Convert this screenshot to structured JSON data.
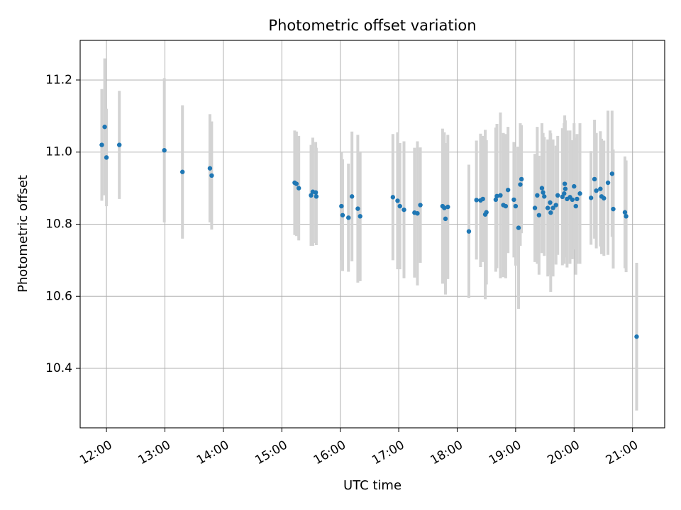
{
  "chart_data": {
    "type": "scatter",
    "title": "Photometric offset variation",
    "xlabel": "UTC time",
    "ylabel": "Photometric offset",
    "xlim": [
      11.55,
      21.55
    ],
    "ylim": [
      10.235,
      11.31
    ],
    "grid": true,
    "x_ticks": [
      12,
      13,
      14,
      15,
      16,
      17,
      18,
      19,
      20,
      21
    ],
    "x_tick_labels": [
      "12:00",
      "13:00",
      "14:00",
      "15:00",
      "16:00",
      "17:00",
      "18:00",
      "19:00",
      "20:00",
      "21:00"
    ],
    "y_ticks": [
      10.4,
      10.6,
      10.8,
      11.0,
      11.2
    ],
    "y_tick_labels": [
      "10.4",
      "10.6",
      "10.8",
      "11.0",
      "11.2"
    ],
    "colors": {
      "point": "#1f77b4",
      "errorbar": "#d3d3d3",
      "grid": "#b0b0b0",
      "axis": "#000000"
    },
    "series": [
      {
        "name": "offset",
        "points": [
          [
            11.92,
            11.02,
            0.155
          ],
          [
            11.97,
            11.07,
            0.19
          ],
          [
            12.0,
            10.985,
            0.135
          ],
          [
            12.22,
            11.02,
            0.15
          ],
          [
            12.99,
            11.005,
            0.2
          ],
          [
            13.3,
            10.945,
            0.185
          ],
          [
            13.77,
            10.955,
            0.15
          ],
          [
            13.8,
            10.935,
            0.15
          ],
          [
            15.22,
            10.915,
            0.145
          ],
          [
            15.25,
            10.912,
            0.145
          ],
          [
            15.29,
            10.9,
            0.145
          ],
          [
            15.5,
            10.88,
            0.14
          ],
          [
            15.53,
            10.89,
            0.15
          ],
          [
            15.58,
            10.888,
            0.14
          ],
          [
            15.59,
            10.877,
            0.135
          ],
          [
            16.02,
            10.85,
            0.15
          ],
          [
            16.04,
            10.825,
            0.155
          ],
          [
            16.14,
            10.818,
            0.15
          ],
          [
            16.2,
            10.877,
            0.18
          ],
          [
            16.3,
            10.843,
            0.205
          ],
          [
            16.34,
            10.822,
            0.18
          ],
          [
            16.9,
            10.875,
            0.175
          ],
          [
            16.98,
            10.865,
            0.19
          ],
          [
            17.02,
            10.85,
            0.175
          ],
          [
            17.09,
            10.84,
            0.19
          ],
          [
            17.27,
            10.832,
            0.18
          ],
          [
            17.32,
            10.83,
            0.2
          ],
          [
            17.37,
            10.853,
            0.16
          ],
          [
            17.75,
            10.85,
            0.215
          ],
          [
            17.78,
            10.845,
            0.21
          ],
          [
            17.8,
            10.815,
            0.21
          ],
          [
            17.84,
            10.848,
            0.2
          ],
          [
            18.2,
            10.78,
            0.185
          ],
          [
            18.33,
            10.867,
            0.165
          ],
          [
            18.4,
            10.866,
            0.185
          ],
          [
            18.44,
            10.87,
            0.175
          ],
          [
            18.48,
            10.827,
            0.235
          ],
          [
            18.5,
            10.833,
            0.2
          ],
          [
            18.66,
            10.868,
            0.2
          ],
          [
            18.68,
            10.878,
            0.2
          ],
          [
            18.74,
            10.88,
            0.23
          ],
          [
            18.79,
            10.853,
            0.2
          ],
          [
            18.83,
            10.85,
            0.2
          ],
          [
            18.87,
            10.895,
            0.175
          ],
          [
            18.97,
            10.868,
            0.16
          ],
          [
            19.0,
            10.85,
            0.165
          ],
          [
            19.05,
            10.79,
            0.225
          ],
          [
            19.08,
            10.91,
            0.17
          ],
          [
            19.1,
            10.925,
            0.15
          ],
          [
            19.33,
            10.845,
            0.15
          ],
          [
            19.37,
            10.88,
            0.19
          ],
          [
            19.4,
            10.825,
            0.165
          ],
          [
            19.45,
            10.9,
            0.18
          ],
          [
            19.47,
            10.888,
            0.165
          ],
          [
            19.49,
            10.877,
            0.165
          ],
          [
            19.55,
            10.845,
            0.19
          ],
          [
            19.59,
            10.86,
            0.2
          ],
          [
            19.6,
            10.832,
            0.22
          ],
          [
            19.64,
            10.845,
            0.19
          ],
          [
            19.69,
            10.853,
            0.165
          ],
          [
            19.72,
            10.88,
            0.165
          ],
          [
            19.8,
            10.876,
            0.19
          ],
          [
            19.83,
            10.885,
            0.195
          ],
          [
            19.84,
            10.912,
            0.19
          ],
          [
            19.85,
            10.898,
            0.19
          ],
          [
            19.88,
            10.87,
            0.19
          ],
          [
            19.93,
            10.875,
            0.185
          ],
          [
            19.97,
            10.868,
            0.165
          ],
          [
            20.0,
            10.905,
            0.175
          ],
          [
            20.03,
            10.85,
            0.19
          ],
          [
            20.05,
            10.87,
            0.18
          ],
          [
            20.1,
            10.885,
            0.195
          ],
          [
            20.29,
            10.873,
            0.13
          ],
          [
            20.35,
            10.925,
            0.165
          ],
          [
            20.38,
            10.893,
            0.16
          ],
          [
            20.45,
            10.898,
            0.16
          ],
          [
            20.47,
            10.877,
            0.16
          ],
          [
            20.51,
            10.872,
            0.16
          ],
          [
            20.58,
            10.915,
            0.2
          ],
          [
            20.65,
            10.94,
            0.175
          ],
          [
            20.67,
            10.842,
            0.165
          ],
          [
            20.87,
            10.833,
            0.155
          ],
          [
            20.89,
            10.822,
            0.155
          ],
          [
            21.07,
            10.488,
            0.205
          ]
        ]
      }
    ]
  }
}
